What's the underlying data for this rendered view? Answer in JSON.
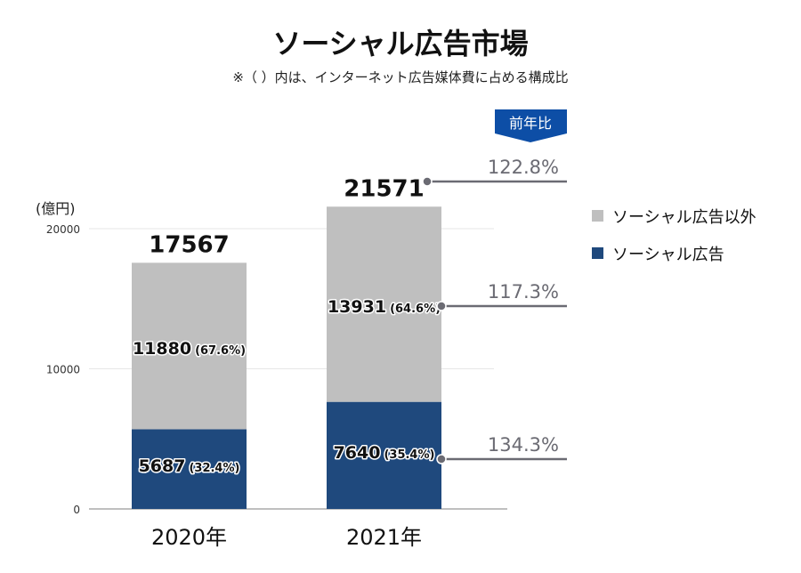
{
  "chart_data": {
    "type": "bar",
    "stacked": true,
    "title": "ソーシャル広告市場",
    "subtitle": "※（ ）内は、インターネット広告媒体費に占める構成比",
    "ylabel": "(億円)",
    "ylim": [
      0,
      20000
    ],
    "yticks": [
      "0",
      "10000",
      "20000"
    ],
    "grid": true,
    "categories": [
      "2020年",
      "2021年"
    ],
    "series": [
      {
        "name": "ソーシャル広告",
        "color": "#1f497d",
        "values": [
          5687,
          7640
        ],
        "labels": [
          "5687",
          "7640"
        ],
        "shares": [
          "(32.4%)",
          "(35.4%)"
        ]
      },
      {
        "name": "ソーシャル広告以外",
        "color": "#bfbfbf",
        "values": [
          11880,
          13931
        ],
        "labels": [
          "11880",
          "13931"
        ],
        "shares": [
          "(67.6%)",
          "(64.6%)"
        ]
      }
    ],
    "totals": [
      "17567",
      "21571"
    ],
    "legend_position": "right",
    "yoy": {
      "badge": "前年比",
      "badge_color": "#0d4ea6",
      "total": "122.8%",
      "other": "117.3%",
      "social": "134.3%"
    }
  }
}
